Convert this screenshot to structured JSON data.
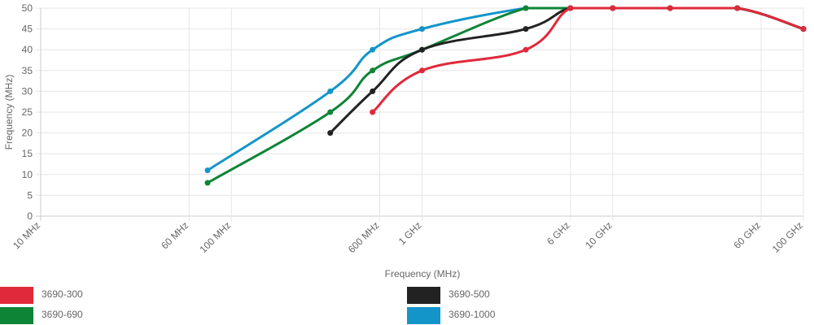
{
  "chart_data": {
    "type": "line",
    "title": "",
    "xlabel": "Frequency (MHz)",
    "ylabel": "Frequency (MHz)",
    "x_scale": "log",
    "xlim_mhz": [
      10,
      100000
    ],
    "ylim": [
      0,
      50
    ],
    "y_ticks": [
      0,
      5,
      10,
      15,
      20,
      25,
      30,
      35,
      40,
      45,
      50
    ],
    "x_ticks": [
      {
        "value_mhz": 10,
        "label": "10 MHz"
      },
      {
        "value_mhz": 60,
        "label": "60 MHz"
      },
      {
        "value_mhz": 100,
        "label": "100 MHz"
      },
      {
        "value_mhz": 600,
        "label": "600 MHz"
      },
      {
        "value_mhz": 1000,
        "label": "1 GHz"
      },
      {
        "value_mhz": 6000,
        "label": "6 GHz"
      },
      {
        "value_mhz": 10000,
        "label": "10 GHz"
      },
      {
        "value_mhz": 60000,
        "label": "60 GHz"
      },
      {
        "value_mhz": 100000,
        "label": "100 GHz"
      }
    ],
    "grid": true,
    "legend_position": "bottom",
    "series": [
      {
        "name": "3690-300",
        "color": "#e0293a",
        "points": [
          [
            550,
            25
          ],
          [
            1000,
            35
          ],
          [
            3500,
            40
          ],
          [
            6000,
            50
          ],
          [
            10000,
            50
          ],
          [
            20000,
            50
          ],
          [
            45000,
            50
          ],
          [
            100000,
            45
          ]
        ]
      },
      {
        "name": "3690-500",
        "color": "#222222",
        "points": [
          [
            330,
            20
          ],
          [
            550,
            30
          ],
          [
            1000,
            40
          ],
          [
            3500,
            45
          ],
          [
            6000,
            50
          ],
          [
            10000,
            50
          ],
          [
            20000,
            50
          ],
          [
            45000,
            50
          ],
          [
            100000,
            45
          ]
        ]
      },
      {
        "name": "3690-690",
        "color": "#0e8436",
        "points": [
          [
            75,
            8
          ],
          [
            330,
            25
          ],
          [
            550,
            35
          ],
          [
            1000,
            40
          ],
          [
            3500,
            50
          ],
          [
            6000,
            50
          ],
          [
            10000,
            50
          ],
          [
            20000,
            50
          ],
          [
            45000,
            50
          ],
          [
            100000,
            45
          ]
        ]
      },
      {
        "name": "3690-1000",
        "color": "#1495c9",
        "points": [
          [
            75,
            11
          ],
          [
            330,
            30
          ],
          [
            550,
            40
          ],
          [
            1000,
            45
          ],
          [
            3500,
            50
          ],
          [
            6000,
            50
          ],
          [
            10000,
            50
          ],
          [
            20000,
            50
          ],
          [
            45000,
            50
          ],
          [
            100000,
            45
          ]
        ]
      }
    ]
  }
}
